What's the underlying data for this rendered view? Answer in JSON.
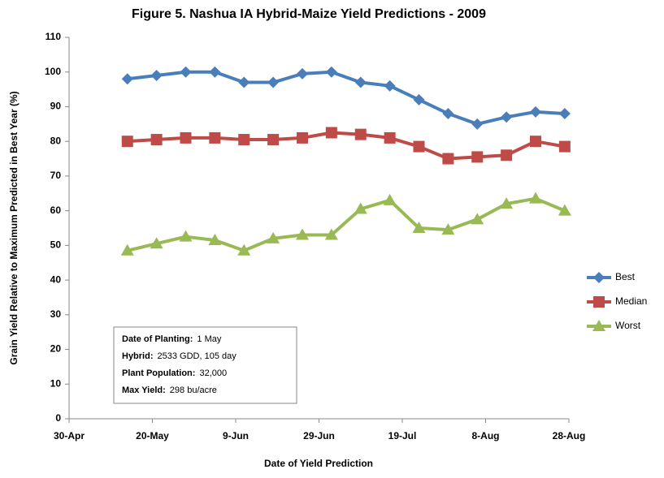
{
  "chart_data": {
    "type": "line",
    "title": "Figure 5. Nashua IA Hybrid-Maize Yield Predictions - 2009",
    "x_label": "Date of Yield Prediction",
    "y_label": "Grain Yield Relative to Maximum Predicted in Best Year (%)",
    "x": [
      "05-14",
      "05-21",
      "05-28",
      "06-04",
      "06-11",
      "06-18",
      "06-25",
      "07-02",
      "07-09",
      "07-16",
      "07-23",
      "07-30",
      "08-06",
      "08-13",
      "08-20",
      "08-27"
    ],
    "series": [
      {
        "name": "Best",
        "color": "#4a7ebb",
        "marker": "diamond",
        "values": [
          98,
          99,
          100,
          100,
          97,
          97,
          99.5,
          100,
          97,
          96,
          92,
          88,
          85,
          87,
          88.5,
          88
        ]
      },
      {
        "name": "Median",
        "color": "#be4b48",
        "marker": "square",
        "values": [
          80,
          80.5,
          81,
          81,
          80.5,
          80.5,
          81,
          82.5,
          82,
          81,
          78.5,
          75,
          75.5,
          76,
          80,
          78.5
        ]
      },
      {
        "name": "Worst",
        "color": "#98b954",
        "marker": "triangle",
        "values": [
          48.5,
          50.5,
          52.5,
          51.5,
          48.5,
          52,
          53,
          53,
          60.5,
          63,
          55,
          54.5,
          57.5,
          62,
          63.5,
          60
        ]
      }
    ],
    "xlim": [
      "04-30",
      "08-28"
    ],
    "xticks": [
      {
        "value": "04-30",
        "label": "30-Apr"
      },
      {
        "value": "05-20",
        "label": "20-May"
      },
      {
        "value": "06-09",
        "label": "9-Jun"
      },
      {
        "value": "06-29",
        "label": "29-Jun"
      },
      {
        "value": "07-19",
        "label": "19-Jul"
      },
      {
        "value": "08-08",
        "label": "8-Aug"
      },
      {
        "value": "08-28",
        "label": "28-Aug"
      }
    ],
    "ylim": [
      0,
      110
    ],
    "yticks": [
      0,
      10,
      20,
      30,
      40,
      50,
      60,
      70,
      80,
      90,
      100,
      110
    ],
    "grid": false,
    "legend": "right",
    "annotations": [
      {
        "label": "Date of Planting:",
        "text": "1 May"
      },
      {
        "label": "Hybrid:",
        "text": "2533 GDD, 105 day"
      },
      {
        "label": "Plant Population:",
        "text": "32,000"
      },
      {
        "label": "Max Yield:",
        "text": "298 bu/acre"
      }
    ]
  }
}
